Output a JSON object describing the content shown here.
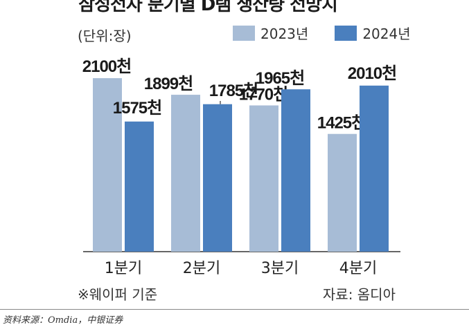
{
  "title": "삼성전자 분기별 D램 생산량 전망치",
  "unit_label": "(단위:장)",
  "footnote": "※웨이퍼 기준",
  "credit": "자료: 옴디아",
  "source": "资料来源：Omdia，中银证券",
  "colors": {
    "series_2023": "#a7bcd6",
    "series_2024": "#4a7fbe"
  },
  "chart_data": {
    "type": "bar",
    "categories": [
      "1분기",
      "2분기",
      "3분기",
      "4분기"
    ],
    "series": [
      {
        "name": "2023년",
        "values": [
          2100,
          1899,
          1770,
          1425
        ],
        "labels": [
          "2100천",
          "1899천",
          "1770천",
          "1425천"
        ]
      },
      {
        "name": "2024년",
        "values": [
          1575,
          1785,
          1965,
          2010
        ],
        "labels": [
          "1575천",
          "1785천",
          "1965천",
          "2010천"
        ]
      }
    ],
    "ylim": [
      0,
      2350
    ],
    "grid": false,
    "legend": "top-right"
  }
}
